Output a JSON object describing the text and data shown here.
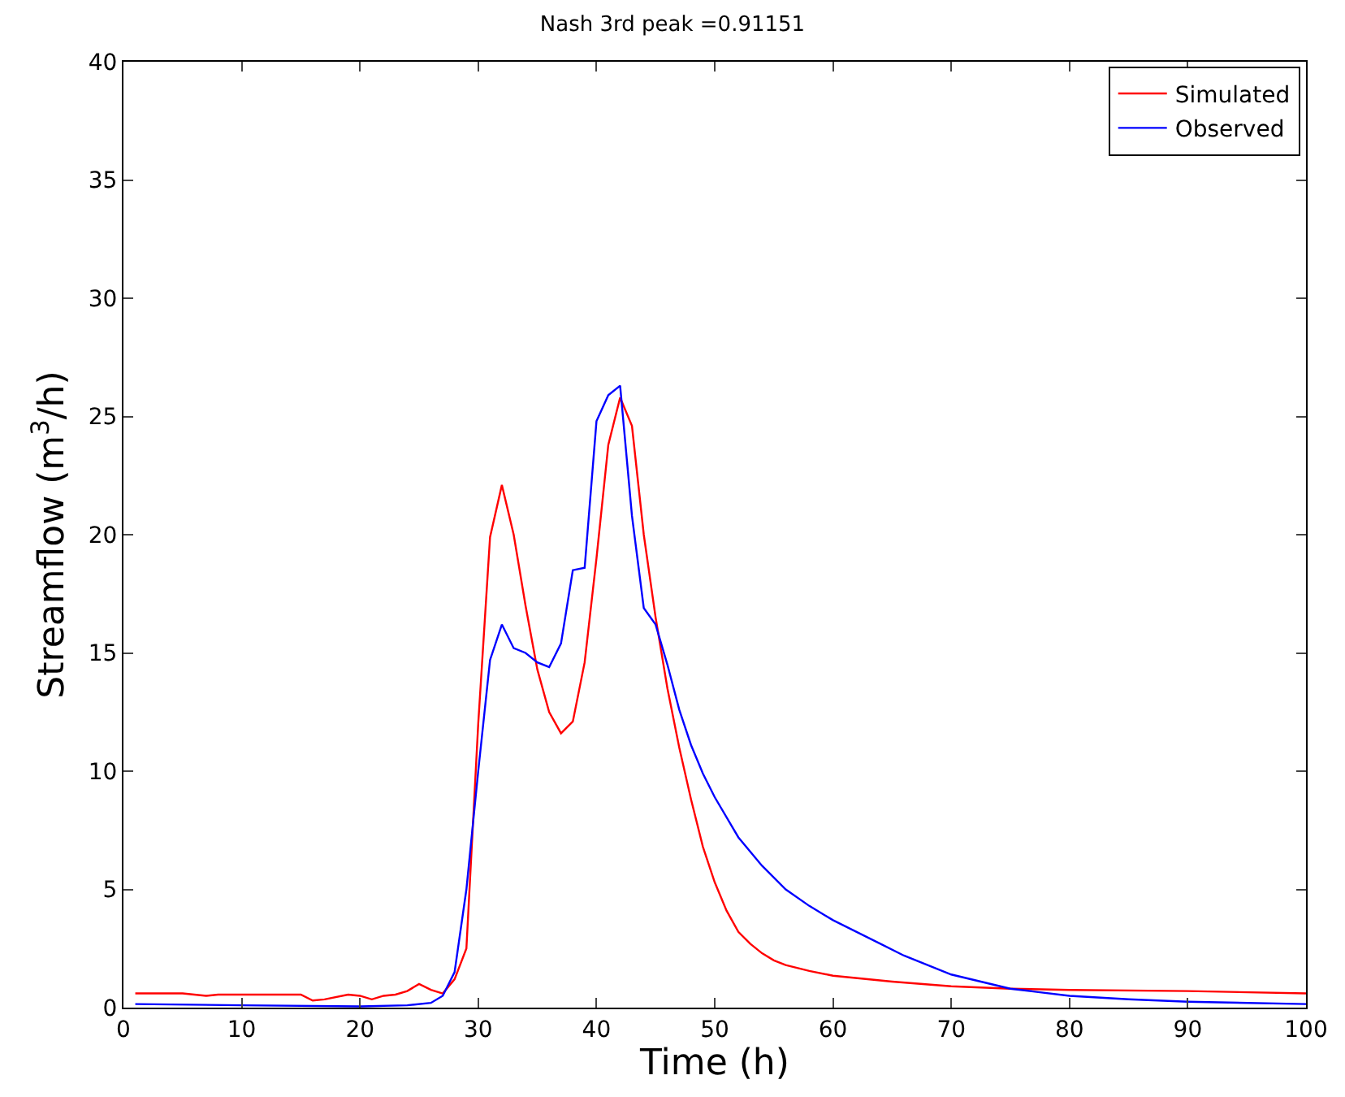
{
  "chart_data": {
    "type": "line",
    "title": "Nash 3rd peak =0.91151",
    "xlabel": "Time (h)",
    "ylabel": "Streamflow (m$^{3}$/h)",
    "xlim": [
      0,
      100
    ],
    "xticks": [
      0,
      10,
      20,
      30,
      40,
      50,
      60,
      70,
      80,
      90,
      100
    ],
    "ylim": [
      0,
      40
    ],
    "yticks": [
      0,
      5,
      10,
      15,
      20,
      25,
      30,
      35,
      40
    ],
    "legend": "top right",
    "marker": "none",
    "line_style": "solid",
    "series": [
      {
        "name": "Simulated",
        "color": "#ff0000",
        "x": [
          1,
          5,
          7,
          8,
          15,
          16,
          17,
          19,
          20,
          21,
          22,
          23,
          24,
          25,
          26,
          27,
          28,
          29,
          30,
          31,
          32,
          33,
          34,
          35,
          36,
          37,
          38,
          39,
          40,
          41,
          42,
          43,
          44,
          45,
          46,
          47,
          48,
          49,
          50,
          51,
          52,
          53,
          54,
          55,
          56,
          58,
          60,
          65,
          70,
          75,
          80,
          90,
          100
        ],
        "values": [
          0.6,
          0.6,
          0.5,
          0.55,
          0.55,
          0.3,
          0.35,
          0.55,
          0.5,
          0.35,
          0.5,
          0.55,
          0.7,
          1.0,
          0.75,
          0.6,
          1.2,
          2.5,
          12,
          19.9,
          22.1,
          20,
          17,
          14.3,
          12.5,
          11.6,
          12.1,
          14.6,
          19,
          23.8,
          25.8,
          24.6,
          20,
          16.5,
          13.5,
          11,
          8.8,
          6.8,
          5.3,
          4.1,
          3.2,
          2.7,
          2.3,
          2.0,
          1.8,
          1.55,
          1.35,
          1.1,
          0.9,
          0.8,
          0.75,
          0.7,
          0.6
        ]
      },
      {
        "name": "Observed",
        "color": "#0000ff",
        "x": [
          1,
          10,
          20,
          24,
          26,
          27,
          28,
          29,
          30,
          31,
          32,
          33,
          34,
          35,
          36,
          37,
          38,
          39,
          40,
          41,
          42,
          43,
          44,
          45,
          46,
          47,
          48,
          49,
          50,
          52,
          54,
          56,
          58,
          60,
          62,
          64,
          66,
          68,
          70,
          75,
          80,
          85,
          90,
          100
        ],
        "values": [
          0.15,
          0.1,
          0.05,
          0.1,
          0.2,
          0.5,
          1.5,
          5,
          10,
          14.7,
          16.2,
          15.2,
          15.0,
          14.6,
          14.4,
          15.4,
          18.5,
          18.6,
          24.8,
          25.9,
          26.3,
          20.8,
          16.9,
          16.2,
          14.5,
          12.6,
          11.1,
          9.9,
          8.9,
          7.2,
          6.0,
          5.0,
          4.3,
          3.7,
          3.2,
          2.7,
          2.2,
          1.8,
          1.4,
          0.8,
          0.5,
          0.35,
          0.25,
          0.15
        ]
      }
    ]
  }
}
